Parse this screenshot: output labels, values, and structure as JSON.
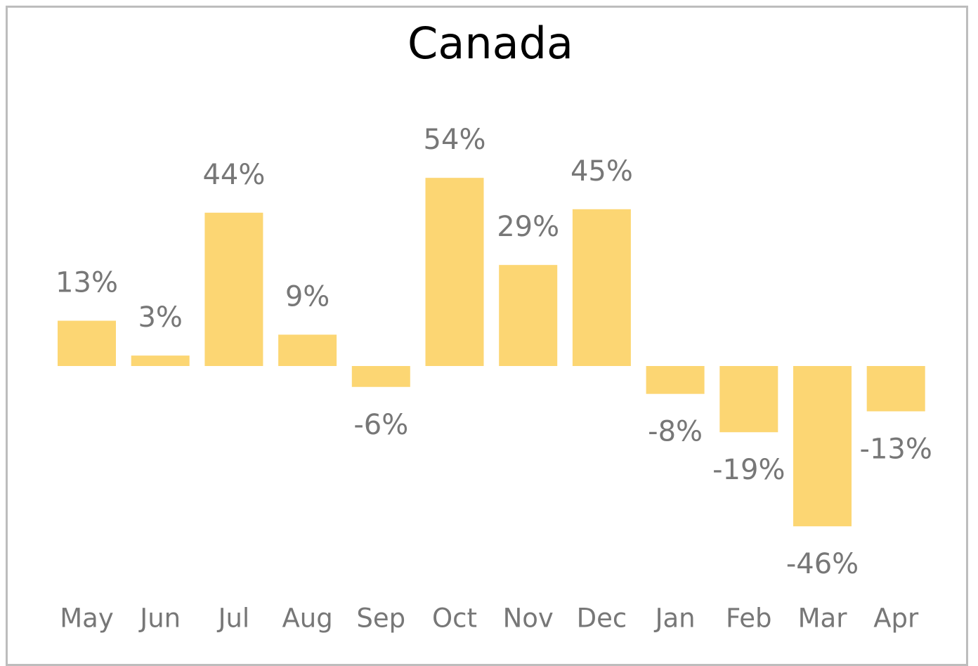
{
  "chart_data": {
    "type": "bar",
    "title": "Canada",
    "categories": [
      "May",
      "Jun",
      "Jul",
      "Aug",
      "Sep",
      "Oct",
      "Nov",
      "Dec",
      "Jan",
      "Feb",
      "Mar",
      "Apr"
    ],
    "values": [
      13,
      3,
      44,
      9,
      -6,
      54,
      29,
      45,
      -8,
      -19,
      -46,
      -13
    ],
    "value_labels": [
      "13%",
      "3%",
      "44%",
      "9%",
      "-6%",
      "54%",
      "29%",
      "45%",
      "-8%",
      "-19%",
      "-46%",
      "-13%"
    ],
    "color": "#fcd673"
  }
}
